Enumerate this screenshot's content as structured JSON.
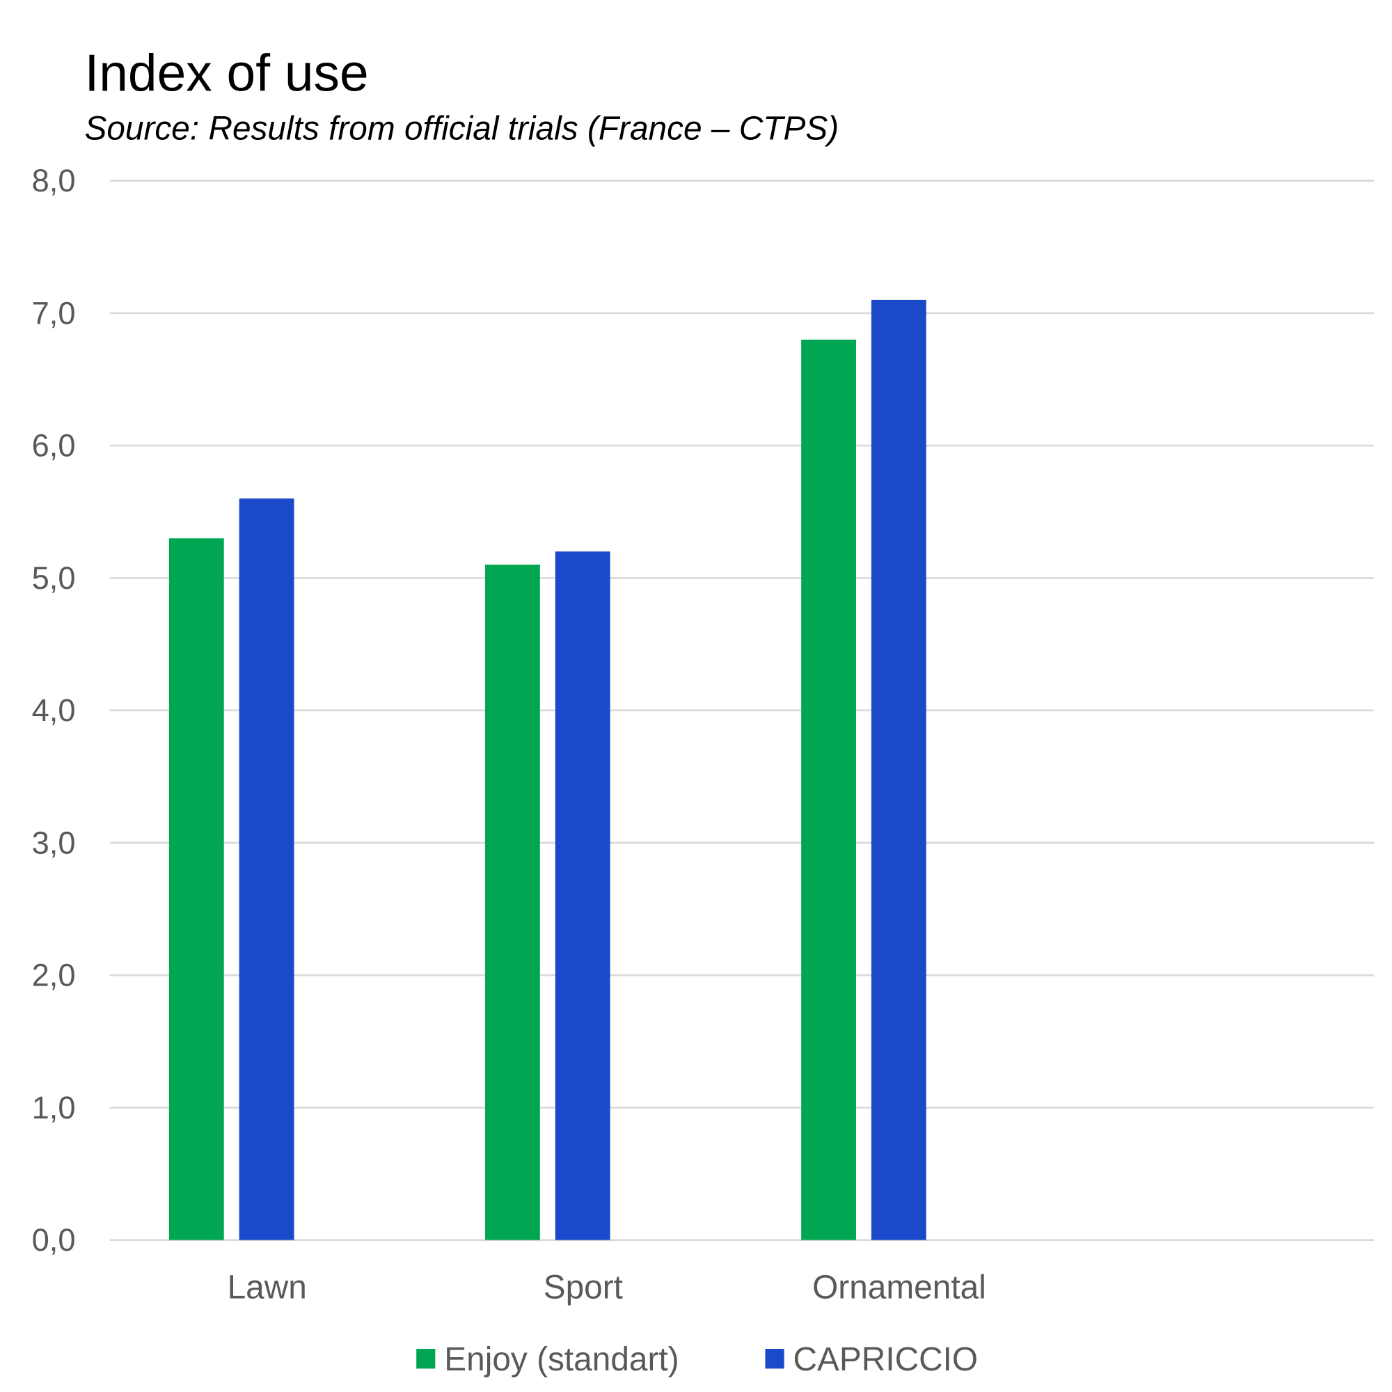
{
  "chart_data": {
    "type": "bar",
    "title": "Index of use",
    "subtitle": "Source: Results from official trials (France – CTPS)",
    "categories": [
      "Lawn",
      "Sport",
      "Ornamental"
    ],
    "series": [
      {
        "name": "Enjoy (standart)",
        "color": "#00A651",
        "values": [
          5.3,
          5.1,
          6.8
        ]
      },
      {
        "name": "CAPRICCIO",
        "color": "#1A49C9",
        "values": [
          5.6,
          5.2,
          7.1
        ]
      }
    ],
    "yticks": [
      "0,0",
      "1,0",
      "2,0",
      "3,0",
      "4,0",
      "5,0",
      "6,0",
      "7,0",
      "8,0"
    ],
    "ylim": [
      0,
      8
    ],
    "xlabel": "",
    "ylabel": "",
    "grid": true,
    "legend": "bottom"
  }
}
